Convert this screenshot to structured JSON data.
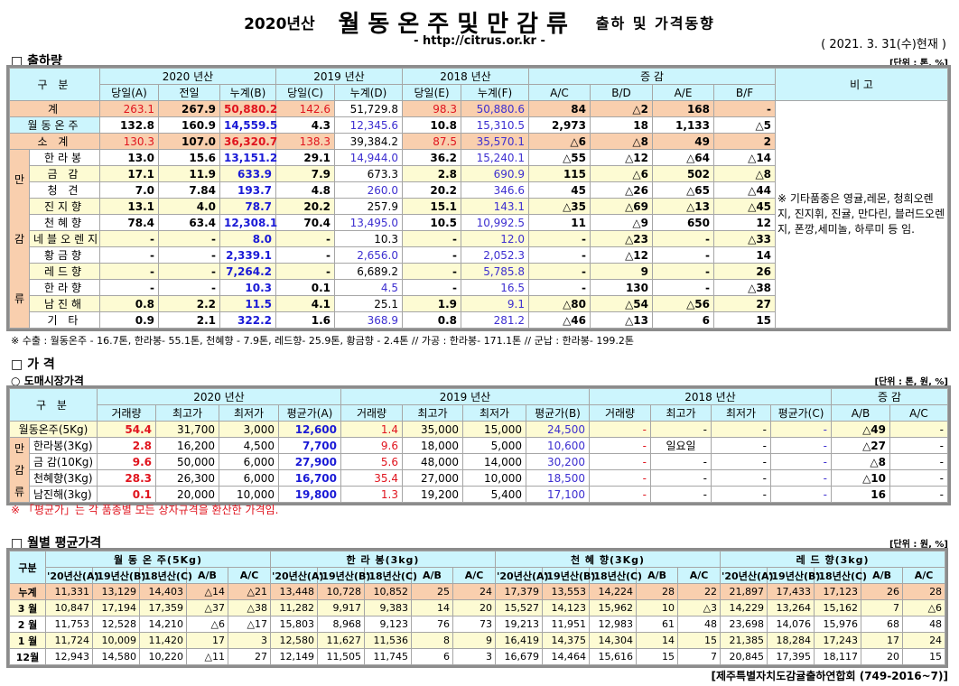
{
  "header": {
    "year": "2020년산",
    "main": "월동온주및만감류",
    "sub": "출하 및 가격동향",
    "url": "- http://citrus.or.kr -",
    "date": "( 2021. 3. 31(수)현재 )"
  },
  "shipments": {
    "title": "□ 출하량",
    "unit": "[단위 : 톤, %]",
    "h_category": "구   분",
    "h_years": [
      "2020 년산",
      "2019 년산",
      "2018 년산"
    ],
    "h_change": "증    감",
    "h_note": "비 고",
    "h_cols": [
      "당일(A)",
      "전일",
      "누계(B)",
      "당일(C)",
      "누계(D)",
      "당일(E)",
      "누계(F)",
      "A/C",
      "B/D",
      "A/E",
      "B/F"
    ],
    "group_label": "만감류",
    "note": "※ 기타품종은 영귤,레몬, 청희오렌지, 진지휘, 진귤, 만다린, 블러드오렌지, 폰깡,세미놀, 하루미 등 임.",
    "rows": [
      {
        "label": "계",
        "kind": "total",
        "v": [
          "263.1",
          "267.9",
          "50,880.2",
          "142.6",
          "51,729.8",
          "98.3",
          "50,880.6",
          "84",
          "△2",
          "168",
          "-"
        ]
      },
      {
        "label": "월동온주",
        "kind": "onju",
        "v": [
          "132.8",
          "160.9",
          "14,559.5",
          "4.3",
          "12,345.6",
          "10.8",
          "15,310.5",
          "2,973",
          "18",
          "1,133",
          "△5"
        ]
      },
      {
        "label": "소  계",
        "kind": "total",
        "v": [
          "130.3",
          "107.0",
          "36,320.7",
          "138.3",
          "39,384.2",
          "87.5",
          "35,570.1",
          "△6",
          "△8",
          "49",
          "2"
        ]
      },
      {
        "label": "한라봉",
        "kind": "w",
        "v": [
          "13.0",
          "15.6",
          "13,151.2",
          "29.1",
          "14,944.0",
          "36.2",
          "15,240.1",
          "△55",
          "△12",
          "△64",
          "△14"
        ]
      },
      {
        "label": "금  감",
        "kind": "y",
        "v": [
          "17.1",
          "11.9",
          "633.9",
          "7.9",
          "673.3",
          "2.8",
          "690.9",
          "115",
          "△6",
          "502",
          "△8"
        ]
      },
      {
        "label": "청  견",
        "kind": "w",
        "v": [
          "7.0",
          "7.84",
          "193.7",
          "4.8",
          "260.0",
          "20.2",
          "346.6",
          "45",
          "△26",
          "△65",
          "△44"
        ]
      },
      {
        "label": "진지향",
        "kind": "y",
        "v": [
          "13.1",
          "4.0",
          "78.7",
          "20.2",
          "257.9",
          "15.1",
          "143.1",
          "△35",
          "△69",
          "△13",
          "△45"
        ]
      },
      {
        "label": "천혜향",
        "kind": "w",
        "v": [
          "78.4",
          "63.4",
          "12,308.1",
          "70.4",
          "13,495.0",
          "10.5",
          "10,992.5",
          "11",
          "△9",
          "650",
          "12"
        ]
      },
      {
        "label": "네블오렌지",
        "kind": "y",
        "v": [
          "-",
          "-",
          "8.0",
          "-",
          "10.3",
          "-",
          "12.0",
          "-",
          "△23",
          "-",
          "△33"
        ]
      },
      {
        "label": "황금향",
        "kind": "w",
        "v": [
          "-",
          "-",
          "2,339.1",
          "-",
          "2,656.0",
          "-",
          "2,052.3",
          "-",
          "△12",
          "-",
          "14"
        ]
      },
      {
        "label": "레드향",
        "kind": "y",
        "v": [
          "-",
          "-",
          "7,264.2",
          "-",
          "6,689.2",
          "-",
          "5,785.8",
          "-",
          "9",
          "-",
          "26"
        ]
      },
      {
        "label": "한라향",
        "kind": "w",
        "v": [
          "-",
          "-",
          "10.3",
          "0.1",
          "4.5",
          "-",
          "16.5",
          "-",
          "130",
          "-",
          "△38"
        ]
      },
      {
        "label": "남진해",
        "kind": "y",
        "v": [
          "0.8",
          "2.2",
          "11.5",
          "4.1",
          "25.1",
          "1.9",
          "9.1",
          "△80",
          "△54",
          "△56",
          "27"
        ]
      },
      {
        "label": "기  타",
        "kind": "w",
        "v": [
          "0.9",
          "2.1",
          "322.2",
          "1.6",
          "368.9",
          "0.8",
          "281.2",
          "△46",
          "△13",
          "6",
          "15"
        ]
      }
    ],
    "footnote": "※ 수출 : 월동온주 - 16.7톤, 한라봉- 55.1톤, 천혜향 - 7.9톤, 레드향- 25.9톤, 황금향 - 2.4톤  // 가공 : 한라봉- 171.1톤 // 군납 : 한라봉- 199.2톤"
  },
  "prices": {
    "title": "□ 가    격",
    "subtitle": "○ 도매시장가격",
    "unit": "[단위 : 톤, 원, %]",
    "h_category": "구   분",
    "h_years": [
      "2020 년산",
      "2019 년산",
      "2018 년산"
    ],
    "h_change": "증   감",
    "h_cols": [
      "거래량",
      "최고가",
      "최저가",
      "평균가(A)",
      "거래량",
      "최고가",
      "최저가",
      "평균가(B)",
      "거래량",
      "최고가",
      "최저가",
      "평균가(C)",
      "A/B",
      "A/C"
    ],
    "group_label": "만감류",
    "rows": [
      {
        "label": "월동온주(5Kg)",
        "v": [
          "54.4",
          "31,700",
          "3,000",
          "12,600",
          "1.4",
          "35,000",
          "15,000",
          "24,500",
          "-",
          "-",
          "-",
          "-",
          "△49",
          "-"
        ]
      },
      {
        "label": "한라봉(3Kg)",
        "v": [
          "2.8",
          "16,200",
          "4,500",
          "7,700",
          "9.6",
          "18,000",
          "5,000",
          "10,600",
          "-",
          "일요일",
          "-",
          "-",
          "△27",
          "-"
        ]
      },
      {
        "label": "금  감(10Kg)",
        "v": [
          "9.6",
          "50,000",
          "6,000",
          "27,900",
          "5.6",
          "48,000",
          "14,000",
          "30,200",
          "-",
          "-",
          "-",
          "-",
          "△8",
          "-"
        ]
      },
      {
        "label": "천혜향(3Kg)",
        "v": [
          "28.3",
          "26,300",
          "6,000",
          "16,700",
          "35.4",
          "27,000",
          "10,000",
          "18,500",
          "-",
          "-",
          "-",
          "-",
          "△10",
          "-"
        ]
      },
      {
        "label": "남진해(3kg)",
        "v": [
          "0.1",
          "20,000",
          "10,000",
          "19,800",
          "1.3",
          "19,200",
          "5,400",
          "17,100",
          "-",
          "-",
          "-",
          "-",
          "16",
          "-"
        ]
      }
    ],
    "footnote": "※ 「평균가」는 각 품종별 모든 상자규격을 환산한 가격임."
  },
  "monthly": {
    "title": "□ 월별 평균가격",
    "unit": "[단위 : 원, %]",
    "h_category": "구분",
    "groups": [
      "월 동 온 주(5Kg)",
      "한 라 봉(3kg)",
      "천 혜 향(3Kg)",
      "레 드 향(3kg)"
    ],
    "h_cols": [
      "'20년산(A)",
      "'19년산(B)",
      "'18년산(C)",
      "A/B",
      "A/C"
    ],
    "rows": [
      {
        "label": "누계",
        "v": [
          "11,331",
          "13,129",
          "14,403",
          "△14",
          "△21",
          "13,448",
          "10,728",
          "10,852",
          "25",
          "24",
          "17,379",
          "13,553",
          "14,224",
          "28",
          "22",
          "21,897",
          "17,433",
          "17,123",
          "26",
          "28"
        ]
      },
      {
        "label": "3 월",
        "v": [
          "10,847",
          "17,194",
          "17,359",
          "△37",
          "△38",
          "11,282",
          "9,917",
          "9,383",
          "14",
          "20",
          "15,527",
          "14,123",
          "15,962",
          "10",
          "△3",
          "14,229",
          "13,264",
          "15,162",
          "7",
          "△6"
        ]
      },
      {
        "label": "2 월",
        "v": [
          "11,753",
          "12,528",
          "14,210",
          "△6",
          "△17",
          "15,803",
          "8,968",
          "9,123",
          "76",
          "73",
          "19,213",
          "11,951",
          "12,983",
          "61",
          "48",
          "23,698",
          "14,076",
          "15,976",
          "68",
          "48"
        ]
      },
      {
        "label": "1 월",
        "v": [
          "11,724",
          "10,009",
          "11,420",
          "17",
          "3",
          "12,580",
          "11,627",
          "11,536",
          "8",
          "9",
          "16,419",
          "14,375",
          "14,304",
          "14",
          "15",
          "21,385",
          "18,284",
          "17,243",
          "17",
          "24"
        ]
      },
      {
        "label": "12월",
        "v": [
          "12,943",
          "14,580",
          "10,220",
          "△11",
          "27",
          "12,149",
          "11,505",
          "11,745",
          "6",
          "3",
          "16,679",
          "14,464",
          "15,616",
          "15",
          "7",
          "20,845",
          "17,395",
          "18,117",
          "20",
          "15"
        ]
      }
    ],
    "source": "[제주특별자치도감귤출하연합회 (749-2016~7)]"
  }
}
